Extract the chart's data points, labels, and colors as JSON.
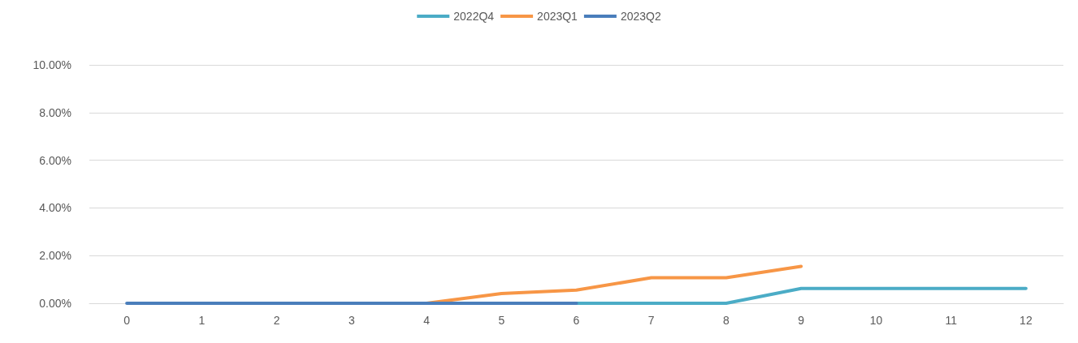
{
  "chart_data": {
    "type": "line",
    "categories": [
      "0",
      "1",
      "2",
      "3",
      "4",
      "5",
      "6",
      "7",
      "8",
      "9",
      "10",
      "11",
      "12"
    ],
    "series": [
      {
        "name": "2022Q4",
        "color": "#4bacc6",
        "values": [
          null,
          null,
          null,
          null,
          null,
          null,
          0,
          0,
          0,
          0.62,
          0.62,
          0.62,
          0.62
        ]
      },
      {
        "name": "2023Q1",
        "color": "#f79646",
        "values": [
          null,
          null,
          null,
          null,
          0,
          0.41,
          0.55,
          1.07,
          1.07,
          1.55,
          null,
          null,
          null
        ]
      },
      {
        "name": "2023Q2",
        "color": "#4a7ebb",
        "values": [
          0,
          0,
          0,
          0,
          0,
          0,
          0,
          null,
          null,
          null,
          null,
          null,
          null
        ]
      }
    ],
    "ylim": [
      0,
      10
    ],
    "yticks": [
      {
        "value": 0,
        "label": "0.00%"
      },
      {
        "value": 2,
        "label": "2.00%"
      },
      {
        "value": 4,
        "label": "4.00%"
      },
      {
        "value": 6,
        "label": "6.00%"
      },
      {
        "value": 8,
        "label": "8.00%"
      },
      {
        "value": 10,
        "label": "10.00%"
      }
    ],
    "grid": "y",
    "legend": "top",
    "marker": "none",
    "line_style": "solid"
  }
}
